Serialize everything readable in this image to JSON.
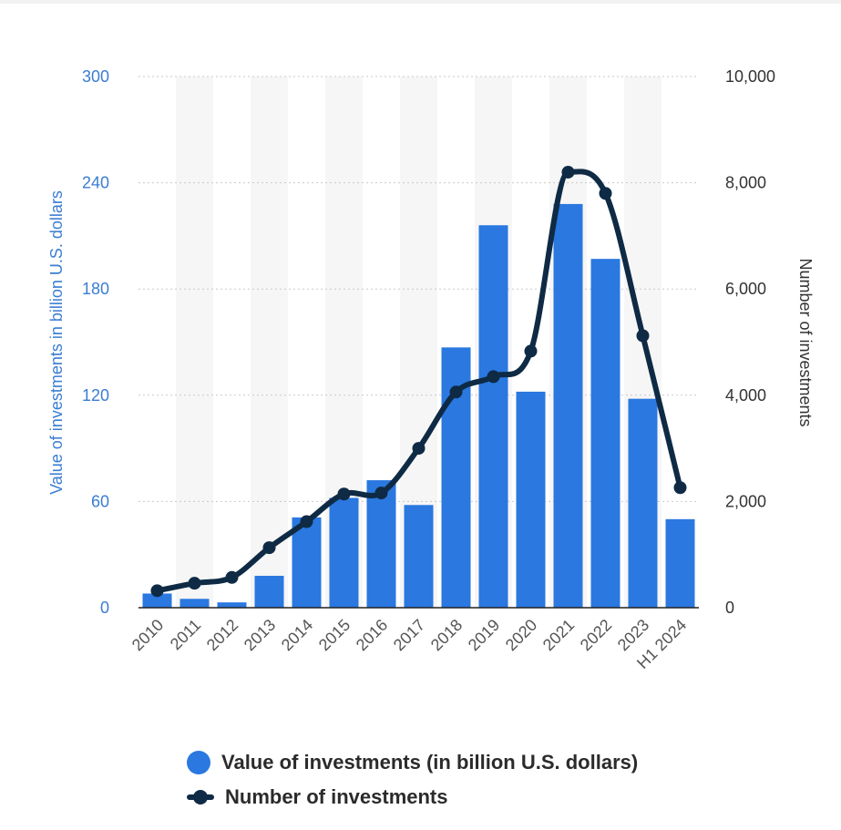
{
  "colors": {
    "bar": "#2a78e0",
    "line": "#0f2a44",
    "left_axis": "#3a7dd2",
    "right_axis": "#333333",
    "grid": "#c9c9c9",
    "band": "#f6f6f6"
  },
  "chart_data": {
    "type": "bar+line",
    "categories": [
      "2010",
      "2011",
      "2012",
      "2013",
      "2014",
      "2015",
      "2016",
      "2017",
      "2018",
      "2019",
      "2020",
      "2021",
      "2022",
      "2023",
      "H1 2024"
    ],
    "series": [
      {
        "name": "Value of investments (in billion U.S. dollars)",
        "type": "bar",
        "axis": "left",
        "values": [
          8,
          5,
          3,
          18,
          51,
          62,
          72,
          58,
          147,
          216,
          122,
          228,
          197,
          118,
          50
        ]
      },
      {
        "name": "Number of investments",
        "type": "line",
        "axis": "right",
        "values": [
          320,
          460,
          570,
          1130,
          1620,
          2140,
          2160,
          3000,
          4060,
          4350,
          4830,
          8200,
          7800,
          5120,
          2260
        ]
      }
    ],
    "left_axis": {
      "label": "Value of investments in billion U.S. dollars",
      "range": [
        0,
        300
      ],
      "ticks": [
        "0",
        "60",
        "120",
        "180",
        "240",
        "300"
      ]
    },
    "right_axis": {
      "label": "Number of investments",
      "range": [
        0,
        10000
      ],
      "ticks": [
        "0",
        "2,000",
        "4,000",
        "6,000",
        "8,000",
        "10,000"
      ]
    },
    "grid": true,
    "legend_position": "bottom-center"
  },
  "legend": {
    "bar_label": "Value of investments (in billion U.S. dollars)",
    "line_label": "Number of investments"
  }
}
